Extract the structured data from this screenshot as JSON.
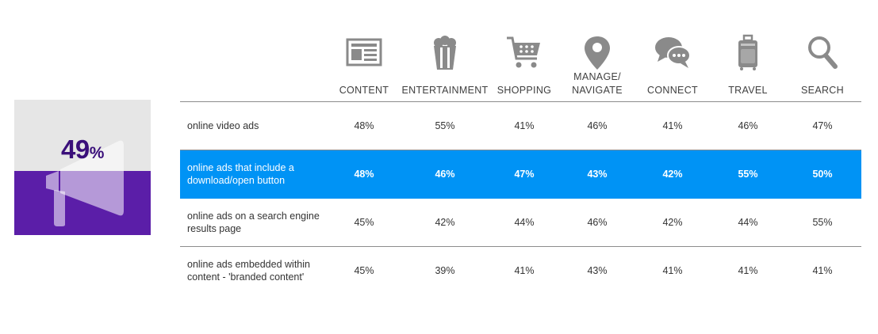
{
  "stat": {
    "value": "49",
    "unit": "%",
    "fill_fraction": 0.49,
    "icon": "megaphone-icon",
    "top_color": "#e6e6e6",
    "bottom_color": "#5b1ea8"
  },
  "colors": {
    "highlight_row": "#0093f5",
    "icon_gray": "#8a8a8a",
    "value_color": "#3a0f7a"
  },
  "chart_data": {
    "type": "table",
    "columns": [
      {
        "label": "CONTENT",
        "icon": "newspaper-icon"
      },
      {
        "label": "ENTERTAINMENT",
        "icon": "popcorn-icon"
      },
      {
        "label": "SHOPPING",
        "icon": "shopping-cart-icon"
      },
      {
        "label": "MANAGE/\nNAVIGATE",
        "icon": "map-pin-icon"
      },
      {
        "label": "CONNECT",
        "icon": "chat-bubbles-icon"
      },
      {
        "label": "TRAVEL",
        "icon": "suitcase-icon"
      },
      {
        "label": "SEARCH",
        "icon": "magnifier-icon"
      }
    ],
    "rows": [
      {
        "label": "online video ads",
        "values": [
          "48%",
          "55%",
          "41%",
          "46%",
          "41%",
          "46%",
          "47%"
        ],
        "highlight": false
      },
      {
        "label": "online ads that include a download/open button",
        "values": [
          "48%",
          "46%",
          "47%",
          "43%",
          "42%",
          "55%",
          "50%"
        ],
        "highlight": true
      },
      {
        "label": "online ads on a search engine results page",
        "values": [
          "45%",
          "42%",
          "44%",
          "46%",
          "42%",
          "44%",
          "55%"
        ],
        "highlight": false
      },
      {
        "label": "online ads embedded within content - 'branded content'",
        "values": [
          "45%",
          "39%",
          "41%",
          "43%",
          "41%",
          "41%",
          "41%"
        ],
        "highlight": false
      }
    ]
  }
}
